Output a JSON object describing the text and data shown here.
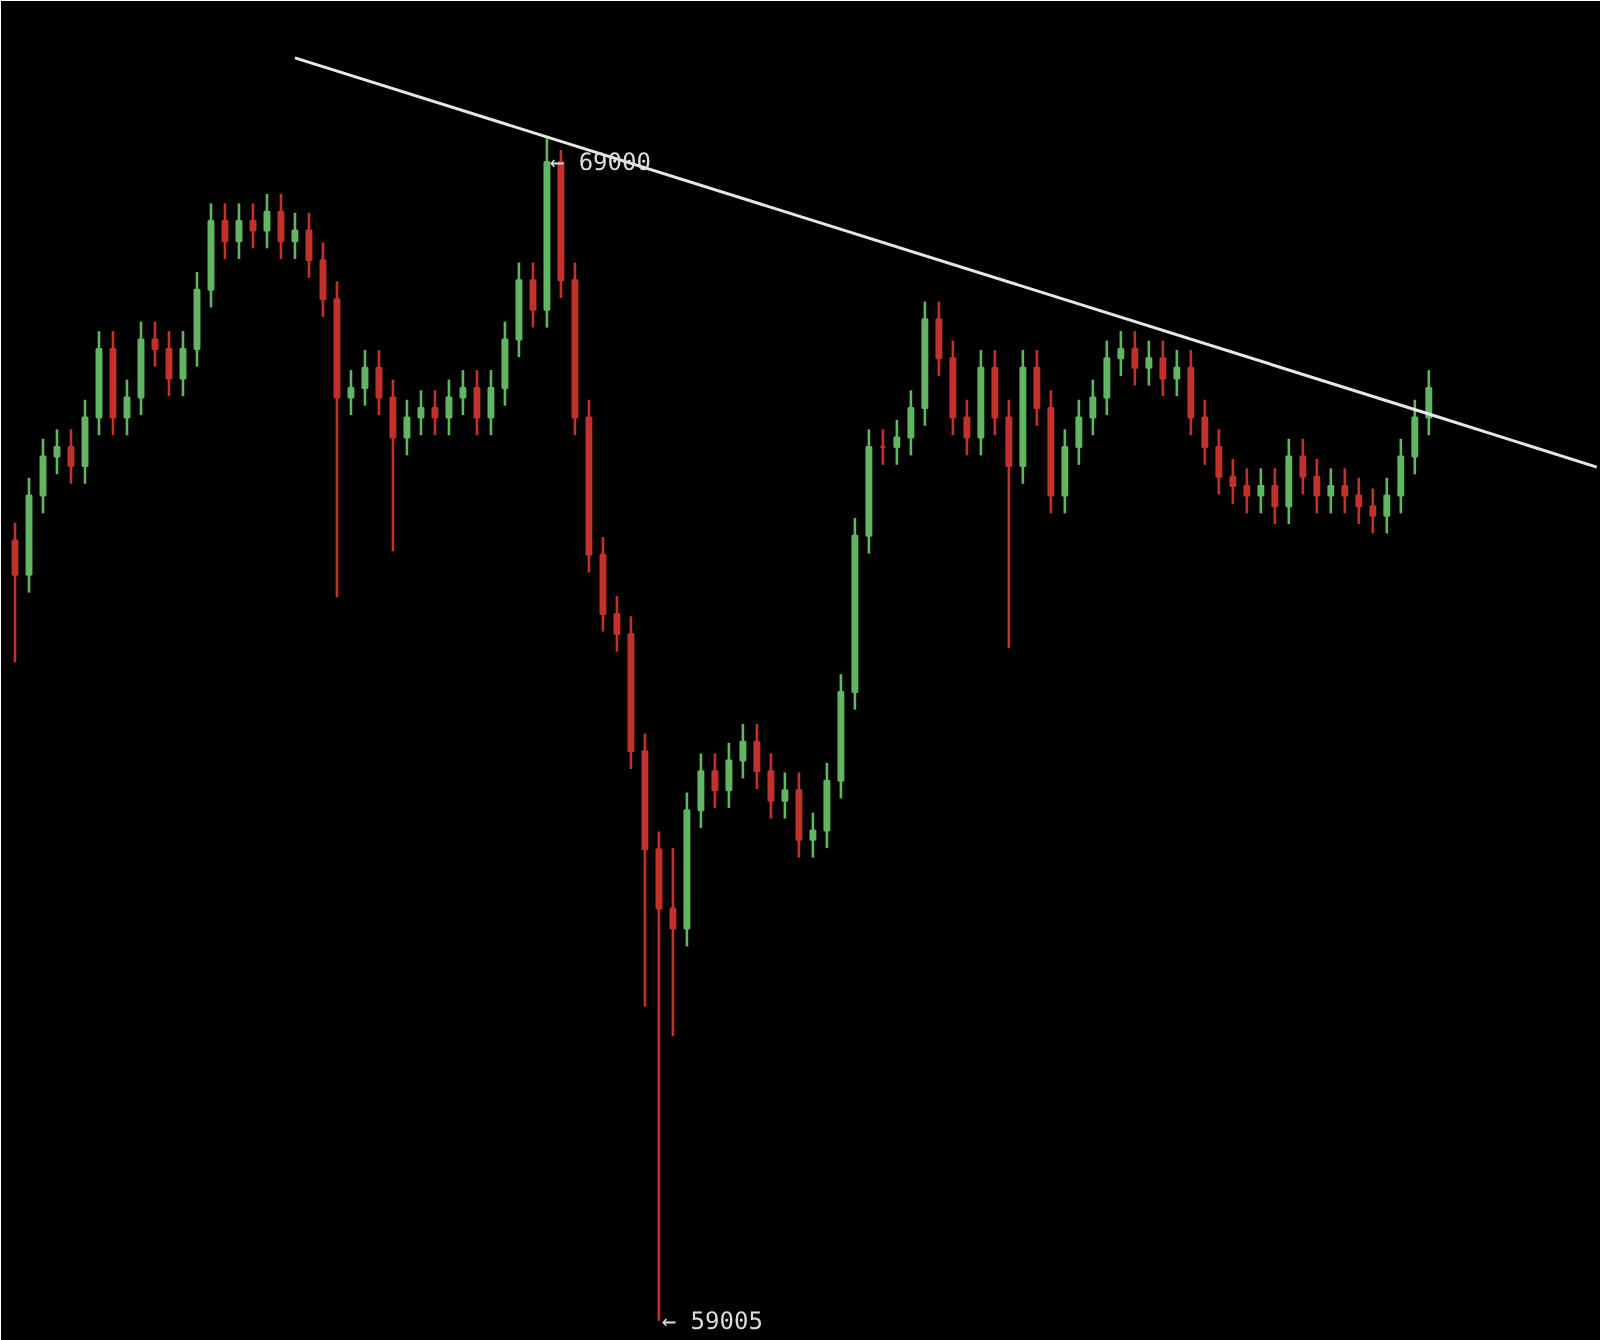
{
  "chart_data": {
    "type": "candlestick",
    "categories": [
      null,
      null,
      null,
      null,
      null,
      null,
      null,
      null,
      null,
      null,
      null,
      null,
      null,
      null,
      null,
      null,
      null,
      null,
      null,
      null,
      null,
      null,
      null,
      null,
      null,
      null,
      null,
      null,
      null,
      null,
      null,
      null,
      null,
      null,
      null,
      null,
      null,
      null,
      null,
      null,
      null,
      null,
      null,
      null,
      null,
      null,
      null,
      null,
      null,
      null,
      null,
      null,
      null,
      null,
      null,
      null,
      null,
      null,
      null,
      null,
      null,
      null,
      null,
      null,
      null,
      null,
      null,
      null,
      null,
      null,
      null,
      null,
      null,
      null,
      null,
      null,
      null,
      null,
      null,
      null,
      null,
      null,
      null,
      null,
      null,
      null,
      null,
      null,
      null,
      null,
      null,
      null,
      null,
      null,
      null,
      null,
      null,
      null,
      null,
      null,
      null,
      null,
      null,
      null,
      null,
      null,
      null,
      null,
      null,
      null,
      null,
      null,
      null,
      null
    ],
    "ohlc": [
      [
        65600,
        65750,
        64570,
        65310
      ],
      [
        65310,
        66130,
        65160,
        65980
      ],
      [
        65980,
        66460,
        65830,
        66310
      ],
      [
        66310,
        66540,
        66160,
        66390
      ],
      [
        66390,
        66540,
        66080,
        66230
      ],
      [
        66230,
        66790,
        66080,
        66640
      ],
      [
        66640,
        67370,
        66490,
        67220
      ],
      [
        67220,
        67370,
        66490,
        66640
      ],
      [
        66640,
        66960,
        66490,
        66810
      ],
      [
        66810,
        67450,
        66660,
        67300
      ],
      [
        67300,
        67450,
        67070,
        67220
      ],
      [
        67220,
        67370,
        66820,
        66970
      ],
      [
        66970,
        67370,
        66820,
        67220
      ],
      [
        67220,
        67870,
        67070,
        67720
      ],
      [
        67720,
        68450,
        67570,
        68300
      ],
      [
        68300,
        68450,
        67980,
        68130
      ],
      [
        68130,
        68450,
        67980,
        68300
      ],
      [
        68300,
        68450,
        68070,
        68220
      ],
      [
        68220,
        68530,
        68070,
        68380
      ],
      [
        68380,
        68530,
        67980,
        68130
      ],
      [
        68130,
        68370,
        67980,
        68220
      ],
      [
        68220,
        68370,
        67820,
        67970
      ],
      [
        67970,
        68120,
        67490,
        67640
      ],
      [
        67640,
        67790,
        65120,
        66810
      ],
      [
        66810,
        67040,
        66660,
        66890
      ],
      [
        66890,
        67210,
        66740,
        67060
      ],
      [
        67060,
        67210,
        66660,
        66810
      ],
      [
        66810,
        66960,
        65510,
        66470
      ],
      [
        66470,
        66790,
        66320,
        66640
      ],
      [
        66640,
        66870,
        66490,
        66720
      ],
      [
        66720,
        66870,
        66490,
        66640
      ],
      [
        66640,
        66960,
        66490,
        66810
      ],
      [
        66810,
        67040,
        66660,
        66890
      ],
      [
        66890,
        67040,
        66490,
        66640
      ],
      [
        66640,
        67040,
        66490,
        66890
      ],
      [
        66890,
        67450,
        66740,
        67300
      ],
      [
        67300,
        67950,
        67150,
        67800
      ],
      [
        67800,
        67950,
        67400,
        67550
      ],
      [
        67550,
        69000,
        67400,
        68800
      ],
      [
        68800,
        68900,
        67650,
        67800
      ],
      [
        67800,
        67950,
        66490,
        66640
      ],
      [
        66640,
        66790,
        65330,
        65480
      ],
      [
        65480,
        65630,
        64830,
        64980
      ],
      [
        64980,
        65130,
        64660,
        64810
      ],
      [
        64810,
        64960,
        63670,
        63820
      ],
      [
        63820,
        63970,
        61660,
        62990
      ],
      [
        62990,
        63140,
        59005,
        62490
      ],
      [
        62490,
        63000,
        61410,
        62320
      ],
      [
        62320,
        63470,
        62170,
        63320
      ],
      [
        63320,
        63800,
        63170,
        63650
      ],
      [
        63650,
        63800,
        63340,
        63490
      ],
      [
        63490,
        63890,
        63340,
        63740
      ],
      [
        63740,
        64050,
        63590,
        63900
      ],
      [
        63900,
        64050,
        63500,
        63650
      ],
      [
        63650,
        63800,
        63250,
        63400
      ],
      [
        63400,
        63640,
        63250,
        63490
      ],
      [
        63490,
        63640,
        62920,
        63070
      ],
      [
        63070,
        63300,
        62920,
        63150
      ],
      [
        63150,
        63720,
        63000,
        63570
      ],
      [
        63570,
        64470,
        63420,
        64320
      ],
      [
        64320,
        65790,
        64170,
        65640
      ],
      [
        65640,
        66540,
        65490,
        66390
      ],
      [
        66390,
        66540,
        66240,
        66390
      ],
      [
        66390,
        66620,
        66240,
        66470
      ],
      [
        66470,
        66870,
        66320,
        66720
      ],
      [
        66720,
        67620,
        66570,
        67470
      ],
      [
        67470,
        67620,
        66990,
        67140
      ],
      [
        67140,
        67290,
        66490,
        66640
      ],
      [
        66640,
        66790,
        66320,
        66470
      ],
      [
        66470,
        67210,
        66320,
        67060
      ],
      [
        67060,
        67210,
        66490,
        66640
      ],
      [
        66640,
        66790,
        64690,
        66230
      ],
      [
        66230,
        67210,
        66080,
        67060
      ],
      [
        67060,
        67210,
        66570,
        66720
      ],
      [
        66720,
        66870,
        65830,
        65980
      ],
      [
        65980,
        66540,
        65830,
        66390
      ],
      [
        66390,
        66790,
        66240,
        66640
      ],
      [
        66640,
        66960,
        66490,
        66810
      ],
      [
        66810,
        67290,
        66660,
        67140
      ],
      [
        67140,
        67370,
        66990,
        67220
      ],
      [
        67220,
        67370,
        66910,
        67060
      ],
      [
        67060,
        67290,
        66910,
        67140
      ],
      [
        67140,
        67290,
        66820,
        66970
      ],
      [
        66970,
        67210,
        66820,
        67060
      ],
      [
        67060,
        67210,
        66490,
        66640
      ],
      [
        66640,
        66790,
        66240,
        66390
      ],
      [
        66390,
        66540,
        65990,
        66140
      ],
      [
        66140,
        66290,
        65910,
        66060
      ],
      [
        66060,
        66210,
        65830,
        65980
      ],
      [
        65980,
        66210,
        65830,
        66060
      ],
      [
        66060,
        66210,
        65740,
        65890
      ],
      [
        65890,
        66460,
        65740,
        66310
      ],
      [
        66310,
        66460,
        65990,
        66140
      ],
      [
        66140,
        66290,
        65830,
        65980
      ],
      [
        65980,
        66210,
        65830,
        66060
      ],
      [
        66060,
        66210,
        65830,
        65980
      ],
      [
        65980,
        66130,
        65740,
        65890
      ],
      [
        65890,
        66040,
        65660,
        65810
      ],
      [
        65810,
        66130,
        65660,
        65980
      ],
      [
        65980,
        66460,
        65830,
        66310
      ],
      [
        66310,
        66790,
        66160,
        66640
      ],
      [
        66640,
        67040,
        66490,
        66890
      ],
      null,
      null,
      null,
      null,
      null,
      null,
      null,
      null,
      null,
      null,
      null,
      null
    ],
    "colors": [
      "#c0322b",
      "#62b562",
      "#62b562",
      "#62b562",
      "#c0322b",
      "#62b562",
      "#62b562",
      "#c0322b",
      "#62b562",
      "#62b562",
      "#c0322b",
      "#c0322b",
      "#62b562",
      "#62b562",
      "#62b562",
      "#c0322b",
      "#62b562",
      "#c0322b",
      "#62b562",
      "#c0322b",
      "#62b562",
      "#c0322b",
      "#c0322b",
      "#c0322b",
      "#62b562",
      "#62b562",
      "#c0322b",
      "#c0322b",
      "#62b562",
      "#62b562",
      "#c0322b",
      "#62b562",
      "#62b562",
      "#c0322b",
      "#62b562",
      "#62b562",
      "#62b562",
      "#c0322b",
      "#62b562",
      "#c0322b",
      "#c0322b",
      "#c0322b",
      "#c0322b",
      "#c0322b",
      "#c0322b",
      "#c0322b",
      "#c0322b",
      "#c0322b",
      "#62b562",
      "#62b562",
      "#c0322b",
      "#62b562",
      "#62b562",
      "#c0322b",
      "#c0322b",
      "#62b562",
      "#c0322b",
      "#62b562",
      "#62b562",
      "#62b562",
      "#62b562",
      "#62b562",
      "#c0322b",
      "#62b562",
      "#62b562",
      "#62b562",
      "#c0322b",
      "#c0322b",
      "#c0322b",
      "#62b562",
      "#c0322b",
      "#c0322b",
      "#62b562",
      "#c0322b",
      "#c0322b",
      "#62b562",
      "#62b562",
      "#62b562",
      "#62b562",
      "#62b562",
      "#c0322b",
      "#62b562",
      "#c0322b",
      "#62b562",
      "#c0322b",
      "#c0322b",
      "#c0322b",
      "#c0322b",
      "#c0322b",
      "#62b562",
      "#c0322b",
      "#62b562",
      "#c0322b",
      "#c0322b",
      "#62b562",
      "#c0322b",
      "#c0322b",
      "#c0322b",
      "#62b562",
      "#62b562",
      "#62b562",
      "#62b562",
      null,
      null,
      null,
      null,
      null,
      null,
      null,
      null,
      null,
      null,
      null,
      null
    ],
    "series": [
      {
        "type": "line",
        "color": "#e6e6e6",
        "values": [
          null,
          null,
          null,
          null,
          null,
          null,
          null,
          null,
          null,
          null,
          null,
          null,
          null,
          null,
          null,
          null,
          null,
          null,
          null,
          null,
          69680,
          null,
          null,
          null,
          null,
          null,
          null,
          null,
          null,
          null,
          null,
          null,
          null,
          null,
          null,
          null,
          null,
          null,
          null,
          null,
          null,
          null,
          null,
          null,
          null,
          null,
          null,
          null,
          null,
          null,
          null,
          null,
          null,
          null,
          null,
          null,
          null,
          null,
          null,
          null,
          null,
          null,
          null,
          null,
          null,
          null,
          null,
          null,
          null,
          null,
          null,
          null,
          null,
          null,
          null,
          null,
          null,
          null,
          null,
          null,
          null,
          null,
          null,
          null,
          null,
          null,
          null,
          null,
          null,
          null,
          null,
          null,
          null,
          null,
          null,
          null,
          null,
          null,
          null,
          null,
          null,
          66670,
          null,
          null,
          null,
          null,
          null,
          null,
          null,
          null,
          null,
          null,
          null,
          66220
        ]
      }
    ],
    "annotations": [
      "← 69000",
      "← 59005"
    ]
  }
}
